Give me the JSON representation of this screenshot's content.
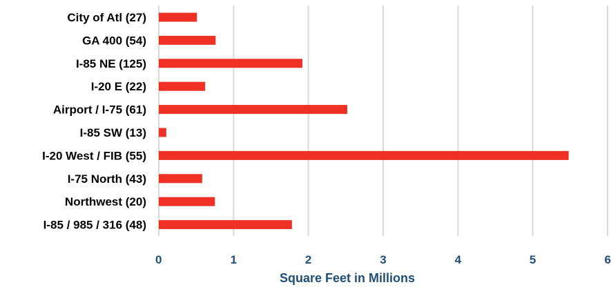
{
  "chart_data": {
    "type": "bar",
    "orientation": "horizontal",
    "categories": [
      "City of Atl (27)",
      "GA 400 (54)",
      "I-85 NE (125)",
      "I-20 E (22)",
      "Airport / I-75 (61)",
      "I-85 SW (13)",
      "I-20 West / FIB (55)",
      "I-75 North (43)",
      "Northwest (20)",
      "I-85 / 985 / 316 (48)"
    ],
    "values": [
      0.51,
      0.76,
      1.92,
      0.62,
      2.52,
      0.1,
      5.48,
      0.58,
      0.75,
      1.78
    ],
    "title": "",
    "xlabel": "Square Feet in Millions",
    "ylabel": "",
    "xlim": [
      0,
      6
    ],
    "xticks": [
      "0",
      "1",
      "2",
      "3",
      "4",
      "5",
      "6"
    ],
    "grid": "vertical",
    "legend": "none",
    "bar_color": "#ee3124",
    "axis_text_color": "#1f4e79"
  }
}
